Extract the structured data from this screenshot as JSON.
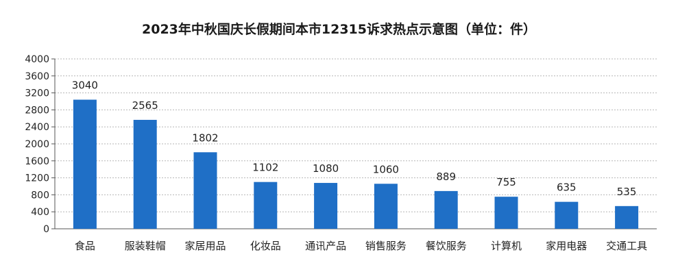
{
  "chart_data": {
    "type": "bar",
    "title": "2023年中秋国庆长假期间本市12315诉求热点示意图（单位：件）",
    "xlabel": "",
    "ylabel": "",
    "categories": [
      "食品",
      "服装鞋帽",
      "家居用品",
      "化妆品",
      "通讯产品",
      "销售服务",
      "餐饮服务",
      "计算机",
      "家用电器",
      "交通工具"
    ],
    "values": [
      3040,
      2565,
      1802,
      1102,
      1080,
      1060,
      889,
      755,
      635,
      535
    ],
    "ylim": [
      0,
      4000
    ],
    "yticks": [
      0,
      400,
      800,
      1200,
      1600,
      2000,
      2400,
      2800,
      3200,
      3600,
      4000
    ],
    "grid": true,
    "legend": "none",
    "bar_color": "#1f6fc6"
  }
}
